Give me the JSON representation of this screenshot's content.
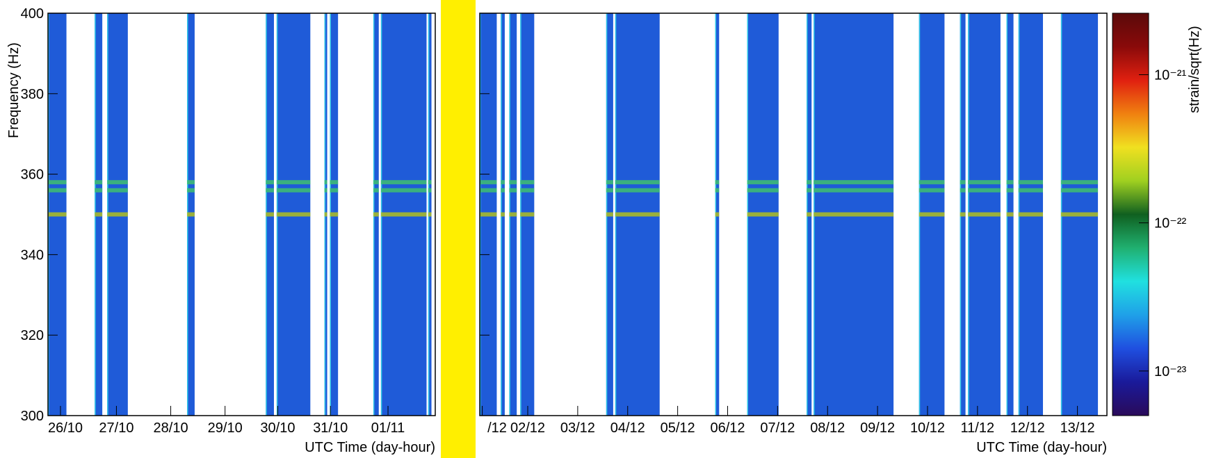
{
  "chart_data": [
    {
      "type": "spectrogram",
      "ylabel": "Frequency (Hz)",
      "xlabel": "UTC Time (day-hour)",
      "ylim": [
        300,
        400
      ],
      "yticks": [
        300,
        320,
        340,
        360,
        380,
        400
      ],
      "xlim": [
        0,
        7.13
      ],
      "xticks": [
        {
          "value": 0.23,
          "label": "26/10"
        },
        {
          "value": 1.26,
          "label": "27/10"
        },
        {
          "value": 2.26,
          "label": "28/10"
        },
        {
          "value": 3.26,
          "label": "29/10"
        },
        {
          "value": 4.23,
          "label": "30/10"
        },
        {
          "value": 5.2,
          "label": "31/10"
        },
        {
          "value": 6.26,
          "label": "01/11"
        }
      ],
      "segments": [
        [
          0,
          0.34
        ],
        [
          0.86,
          1.0
        ],
        [
          1.09,
          1.47
        ],
        [
          2.56,
          2.7
        ],
        [
          4.01,
          4.16
        ],
        [
          4.21,
          4.83
        ],
        [
          5.09,
          5.14
        ],
        [
          5.19,
          5.34
        ],
        [
          5.99,
          6.09
        ],
        [
          6.13,
          6.97
        ],
        [
          7.0,
          7.06
        ]
      ],
      "lines_hz": [
        350,
        356,
        358
      ],
      "color": "#1f5bd8"
    },
    {
      "type": "spectrogram",
      "xlabel": "UTC Time (day-hour)",
      "ylim": [
        300,
        400
      ],
      "yticks": [
        300,
        320,
        340,
        360,
        380,
        400
      ],
      "xlim": [
        0,
        12.55
      ],
      "xticks": [
        {
          "value": 0.05,
          "label": "/12"
        },
        {
          "value": 0.96,
          "label": "02/12"
        },
        {
          "value": 1.96,
          "label": "03/12"
        },
        {
          "value": 2.96,
          "label": "04/12"
        },
        {
          "value": 3.96,
          "label": "05/12"
        },
        {
          "value": 4.96,
          "label": "06/12"
        },
        {
          "value": 5.96,
          "label": "07/12"
        },
        {
          "value": 6.96,
          "label": "08/12"
        },
        {
          "value": 7.96,
          "label": "09/12"
        },
        {
          "value": 8.96,
          "label": "10/12"
        },
        {
          "value": 9.96,
          "label": "11/12"
        },
        {
          "value": 10.96,
          "label": "12/12"
        },
        {
          "value": 11.96,
          "label": "13/12"
        }
      ],
      "segments": [
        [
          0,
          0.34
        ],
        [
          0.42,
          0.5
        ],
        [
          0.59,
          0.74
        ],
        [
          0.81,
          1.09
        ],
        [
          2.53,
          2.67
        ],
        [
          2.71,
          3.6
        ],
        [
          4.71,
          4.79
        ],
        [
          5.35,
          5.98
        ],
        [
          6.54,
          6.64
        ],
        [
          6.68,
          8.28
        ],
        [
          8.79,
          9.3
        ],
        [
          9.61,
          9.72
        ],
        [
          9.77,
          10.42
        ],
        [
          10.54,
          10.68
        ],
        [
          10.78,
          11.27
        ],
        [
          11.63,
          12.37
        ]
      ],
      "lines_hz": [
        350,
        356,
        358
      ],
      "color": "#1f5bd8"
    },
    {
      "type": "colorbar",
      "label": "strain/sqrt(Hz)",
      "log_scale": true,
      "zlim": [
        5e-24,
        2.6e-21
      ],
      "zticks": [
        {
          "value": 1e-23,
          "label": "10⁻²³"
        },
        {
          "value": 1e-22,
          "label": "10⁻²²"
        },
        {
          "value": 1e-21,
          "label": "10⁻²¹"
        }
      ],
      "colormap": [
        "#2a0a5a",
        "#1a1a9a",
        "#1f4fe0",
        "#1fa0e8",
        "#20e0e0",
        "#20b070",
        "#106020",
        "#a0d020",
        "#f0e020",
        "#f08010",
        "#e02010",
        "#8a0a0a",
        "#5a0a0a"
      ]
    }
  ]
}
